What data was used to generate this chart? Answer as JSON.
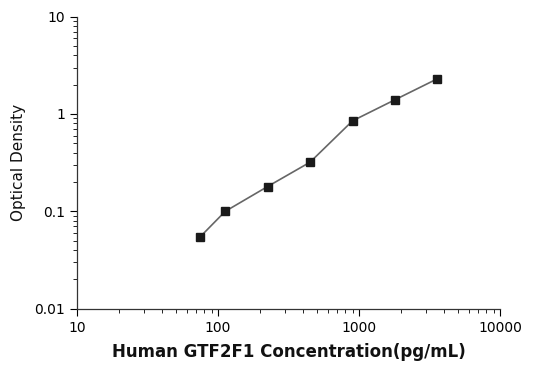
{
  "x": [
    75,
    112.5,
    225,
    450,
    900,
    1800,
    3600
  ],
  "y": [
    0.055,
    0.1,
    0.18,
    0.32,
    0.85,
    1.4,
    2.3
  ],
  "xlabel": "Human GTF2F1 Concentration(pg/mL)",
  "ylabel": "Optical Density",
  "xlim": [
    10,
    10000
  ],
  "ylim": [
    0.01,
    10
  ],
  "xticks": [
    10,
    100,
    1000,
    10000
  ],
  "xtick_labels": [
    "10",
    "100",
    "1000",
    "10000"
  ],
  "yticks": [
    0.01,
    0.1,
    1,
    10
  ],
  "ytick_labels": [
    "0.01",
    "0.1",
    "1",
    "10"
  ],
  "line_color": "#666666",
  "marker_color": "#1a1a1a",
  "marker": "s",
  "marker_size": 6,
  "linewidth": 1.2,
  "xlabel_fontsize": 12,
  "ylabel_fontsize": 11,
  "tick_fontsize": 10,
  "background_color": "#ffffff"
}
